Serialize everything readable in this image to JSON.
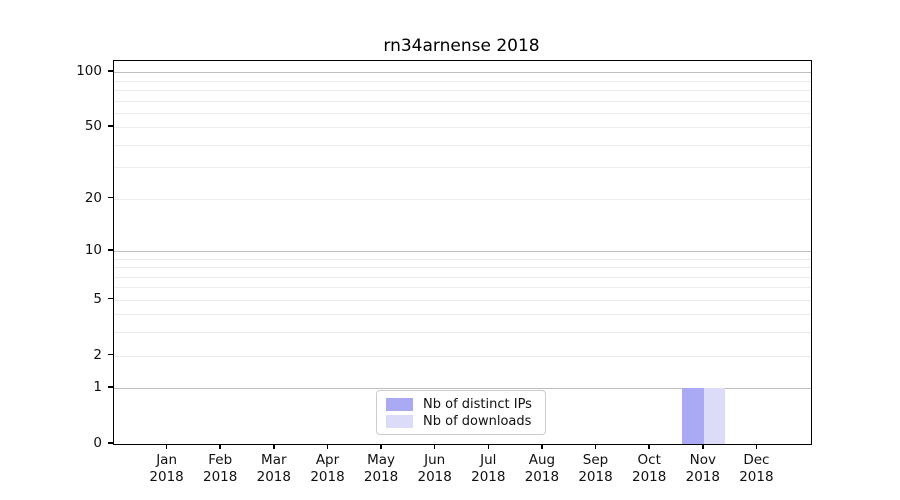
{
  "chart_data": {
    "type": "bar",
    "title": "rn34arnense 2018",
    "categories": [
      "Jan",
      "Feb",
      "Mar",
      "Apr",
      "May",
      "Jun",
      "Jul",
      "Aug",
      "Sep",
      "Oct",
      "Nov",
      "Dec"
    ],
    "x_sublabel_year": "2018",
    "series": [
      {
        "name": "Nb of distinct IPs",
        "color": "#aaaaf4",
        "values": [
          0,
          0,
          0,
          0,
          0,
          0,
          0,
          0,
          0,
          0,
          1,
          0
        ]
      },
      {
        "name": "Nb of downloads",
        "color": "#dcdcf8",
        "values": [
          0,
          0,
          0,
          0,
          0,
          0,
          0,
          0,
          0,
          0,
          1,
          0
        ]
      }
    ],
    "y_scale": "log1p",
    "ylim": [
      0,
      115
    ],
    "xlim": [
      -1.0,
      12.0
    ],
    "bar_width": 0.4,
    "y_tick_labels": [
      100,
      50,
      20,
      10,
      5,
      2,
      1,
      0
    ],
    "y_major_grid": [
      1,
      10,
      100
    ],
    "y_minor_grid": [
      2,
      3,
      4,
      5,
      6,
      7,
      8,
      9,
      20,
      30,
      40,
      50,
      60,
      70,
      80,
      90
    ],
    "grid": "horizontal",
    "legend_position": "lower center"
  },
  "colors": {
    "axis": "#000000",
    "major_grid": "#bdbdbd",
    "minor_grid": "#ececec",
    "legend_border": "#cccccc"
  }
}
